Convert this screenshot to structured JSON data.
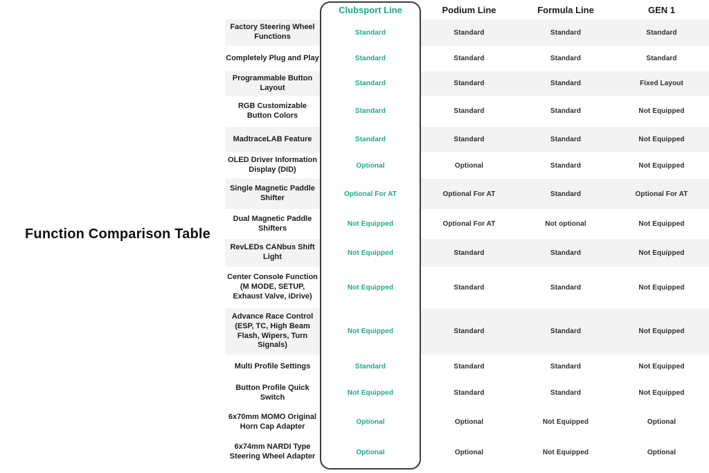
{
  "title": "Function Comparison Table",
  "colors": {
    "accent": "#1ba98c",
    "stripe": "#f3f3f3",
    "highlight_border": "#3a3a3a"
  },
  "chart_data": {
    "type": "table",
    "title": "Function Comparison Table",
    "columns": [
      {
        "id": "clubsport",
        "label": "Clubsport Line",
        "highlighted": true
      },
      {
        "id": "podium",
        "label": "Podium Line",
        "highlighted": false
      },
      {
        "id": "formula",
        "label": "Formula Line",
        "highlighted": false
      },
      {
        "id": "gen1",
        "label": "GEN 1",
        "highlighted": false
      }
    ],
    "rows": [
      {
        "feature": "Factory Steering Wheel Functions",
        "values": [
          "Standard",
          "Standard",
          "Standard",
          "Standard"
        ],
        "shaded": true
      },
      {
        "feature": "Completely Plug and Play",
        "values": [
          "Standard",
          "Standard",
          "Standard",
          "Standard"
        ],
        "shaded": false
      },
      {
        "feature": "Programmable Button Layout",
        "values": [
          "Standard",
          "Standard",
          "Standard",
          "Fixed Layout"
        ],
        "shaded": true
      },
      {
        "feature": "RGB Customizable Button Colors",
        "values": [
          "Standard",
          "Standard",
          "Standard",
          "Not Equipped"
        ],
        "shaded": false
      },
      {
        "feature": "MadtraceLAB Feature",
        "values": [
          "Standard",
          "Standard",
          "Standard",
          "Not Equipped"
        ],
        "shaded": true
      },
      {
        "feature": "OLED Driver Information Display (DID)",
        "values": [
          "Optional",
          "Optional",
          "Standard",
          "Not Equipped"
        ],
        "shaded": false
      },
      {
        "feature": "Single Magnetic Paddle Shifter",
        "values": [
          "Optional For AT",
          "Optional For AT",
          "Standard",
          "Optional For AT"
        ],
        "shaded": true
      },
      {
        "feature": "Dual Magnetic Paddle Shifters",
        "values": [
          "Not Equipped",
          "Optional For AT",
          "Not optional",
          "Not Equipped"
        ],
        "shaded": false
      },
      {
        "feature": "RevLEDs CANbus Shift Light",
        "values": [
          "Not Equipped",
          "Standard",
          "Standard",
          "Not Equipped"
        ],
        "shaded": true
      },
      {
        "feature": "Center Console Function (M MODE, SETUP, Exhaust Valve, iDrive)",
        "values": [
          "Not Equipped",
          "Standard",
          "Standard",
          "Not Equipped"
        ],
        "shaded": false
      },
      {
        "feature": "Advance Race Control (ESP, TC, High Beam Flash, Wipers, Turn Signals)",
        "values": [
          "Not Equipped",
          "Standard",
          "Standard",
          "Not Equipped"
        ],
        "shaded": true
      },
      {
        "feature": "Multi Profile Settings",
        "values": [
          "Standard",
          "Standard",
          "Standard",
          "Not Equipped"
        ],
        "shaded": false
      },
      {
        "feature": "Button Profile Quick Switch",
        "values": [
          "Not Equipped",
          "Standard",
          "Standard",
          "Not Equipped"
        ],
        "shaded": false
      },
      {
        "feature": "6x70mm MOMO Original Horn Cap Adapter",
        "values": [
          "Optional",
          "Optional",
          "Not Equipped",
          "Optional"
        ],
        "shaded": false
      },
      {
        "feature": "6x74mm NARDI Type Steering Wheel Adapter",
        "values": [
          "Optional",
          "Optional",
          "Not Equipped",
          "Optional"
        ],
        "shaded": false
      }
    ]
  }
}
